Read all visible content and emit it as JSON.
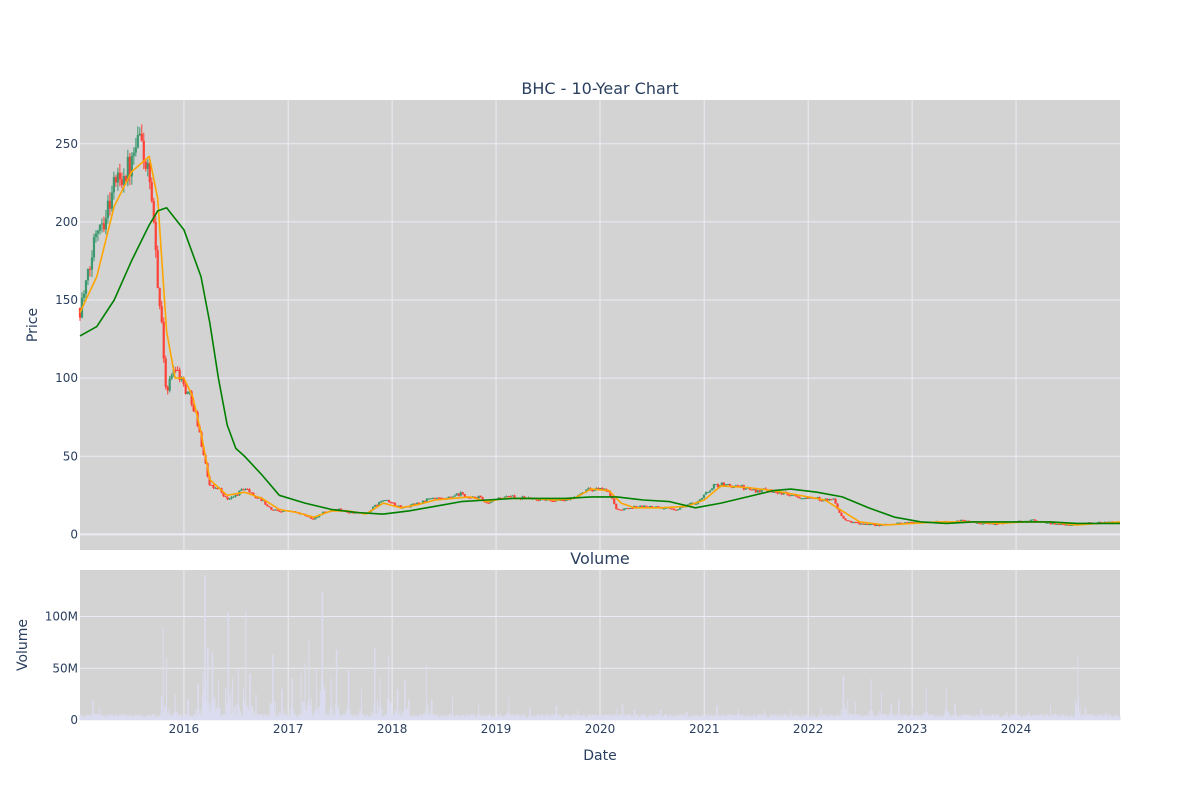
{
  "chart_data": {
    "title": "BHC - 10-Year Chart",
    "subplot_title": "Volume",
    "xlabel": "Date",
    "colors": {
      "plot_bg": "#d3d3d3",
      "grid": "#ebebf5",
      "increasing": "#3d9970",
      "decreasing": "#ff4136",
      "ma_short": "#ffa500",
      "ma_long": "#008000",
      "volume": "#dcdcf0"
    },
    "price_panel": {
      "type": "candlestick",
      "ylabel": "Price",
      "ylim": [
        -10,
        278
      ],
      "yticks": [
        0,
        50,
        100,
        150,
        200,
        250
      ],
      "ytick_labels": [
        "0",
        "50",
        "100",
        "150",
        "200",
        "250"
      ],
      "close_profile": [
        [
          "2015-01-01",
          145
        ],
        [
          "2015-02-01",
          165
        ],
        [
          "2015-03-01",
          200
        ],
        [
          "2015-04-01",
          205
        ],
        [
          "2015-05-01",
          225
        ],
        [
          "2015-06-01",
          232
        ],
        [
          "2015-07-01",
          235
        ],
        [
          "2015-08-01",
          255
        ],
        [
          "2015-09-01",
          225
        ],
        [
          "2015-10-01",
          165
        ],
        [
          "2015-11-01",
          90
        ],
        [
          "2015-12-01",
          110
        ],
        [
          "2016-01-01",
          95
        ],
        [
          "2016-02-01",
          85
        ],
        [
          "2016-03-01",
          60
        ],
        [
          "2016-04-01",
          30
        ],
        [
          "2016-05-01",
          30
        ],
        [
          "2016-06-01",
          22
        ],
        [
          "2016-07-01",
          25
        ],
        [
          "2016-08-01",
          30
        ],
        [
          "2016-09-01",
          25
        ],
        [
          "2016-10-01",
          22
        ],
        [
          "2016-11-01",
          16
        ],
        [
          "2016-12-01",
          15
        ],
        [
          "2017-01-01",
          15
        ],
        [
          "2017-02-01",
          14
        ],
        [
          "2017-03-01",
          12
        ],
        [
          "2017-04-01",
          10
        ],
        [
          "2017-05-01",
          14
        ],
        [
          "2017-06-01",
          15
        ],
        [
          "2017-07-01",
          16
        ],
        [
          "2017-08-01",
          14
        ],
        [
          "2017-09-01",
          14
        ],
        [
          "2017-10-01",
          13
        ],
        [
          "2017-11-01",
          18
        ],
        [
          "2017-12-01",
          22
        ],
        [
          "2018-01-01",
          20
        ],
        [
          "2018-02-01",
          17
        ],
        [
          "2018-03-01",
          18
        ],
        [
          "2018-04-01",
          20
        ],
        [
          "2018-05-01",
          22
        ],
        [
          "2018-06-01",
          23
        ],
        [
          "2018-07-01",
          22
        ],
        [
          "2018-08-01",
          24
        ],
        [
          "2018-09-01",
          26
        ],
        [
          "2018-10-01",
          23
        ],
        [
          "2018-11-01",
          24
        ],
        [
          "2018-12-01",
          19
        ],
        [
          "2019-01-01",
          23
        ],
        [
          "2019-03-01",
          24
        ],
        [
          "2019-05-01",
          23
        ],
        [
          "2019-07-01",
          22
        ],
        [
          "2019-09-01",
          22
        ],
        [
          "2019-10-01",
          23
        ],
        [
          "2019-11-01",
          28
        ],
        [
          "2019-12-01",
          29
        ],
        [
          "2020-01-01",
          29
        ],
        [
          "2020-02-01",
          27
        ],
        [
          "2020-03-01",
          15
        ],
        [
          "2020-04-01",
          17
        ],
        [
          "2020-06-01",
          18
        ],
        [
          "2020-08-01",
          17
        ],
        [
          "2020-10-01",
          16
        ],
        [
          "2020-11-01",
          19
        ],
        [
          "2020-12-01",
          20
        ],
        [
          "2021-01-01",
          25
        ],
        [
          "2021-02-01",
          31
        ],
        [
          "2021-03-01",
          32
        ],
        [
          "2021-04-01",
          31
        ],
        [
          "2021-05-01",
          31
        ],
        [
          "2021-06-01",
          29
        ],
        [
          "2021-07-01",
          28
        ],
        [
          "2021-08-01",
          29
        ],
        [
          "2021-09-01",
          28
        ],
        [
          "2021-10-01",
          26
        ],
        [
          "2021-11-01",
          26
        ],
        [
          "2021-12-01",
          24
        ],
        [
          "2022-01-01",
          24
        ],
        [
          "2022-02-01",
          23
        ],
        [
          "2022-03-01",
          22
        ],
        [
          "2022-04-01",
          22
        ],
        [
          "2022-05-01",
          10
        ],
        [
          "2022-06-01",
          8
        ],
        [
          "2022-07-01",
          7
        ],
        [
          "2022-08-01",
          6
        ],
        [
          "2022-09-01",
          6
        ],
        [
          "2022-10-01",
          6
        ],
        [
          "2022-11-01",
          7
        ],
        [
          "2023-01-01",
          8
        ],
        [
          "2023-03-01",
          8
        ],
        [
          "2023-05-01",
          8
        ],
        [
          "2023-07-01",
          9
        ],
        [
          "2023-09-01",
          7
        ],
        [
          "2023-11-01",
          7
        ],
        [
          "2024-01-01",
          8
        ],
        [
          "2024-03-01",
          9
        ],
        [
          "2024-05-01",
          7
        ],
        [
          "2024-07-01",
          6
        ],
        [
          "2024-09-01",
          7
        ],
        [
          "2024-12-31",
          8
        ]
      ],
      "ma_short": {
        "type": "line",
        "points": [
          [
            "2015-01-01",
            142
          ],
          [
            "2015-03-01",
            165
          ],
          [
            "2015-05-01",
            210
          ],
          [
            "2015-07-01",
            232
          ],
          [
            "2015-09-01",
            242
          ],
          [
            "2015-10-01",
            215
          ],
          [
            "2015-11-01",
            130
          ],
          [
            "2015-12-01",
            100
          ],
          [
            "2016-01-01",
            100
          ],
          [
            "2016-02-01",
            88
          ],
          [
            "2016-03-01",
            65
          ],
          [
            "2016-04-01",
            35
          ],
          [
            "2016-05-01",
            30
          ],
          [
            "2016-06-01",
            25
          ],
          [
            "2016-08-01",
            27
          ],
          [
            "2016-10-01",
            23
          ],
          [
            "2016-12-01",
            16
          ],
          [
            "2017-02-01",
            14
          ],
          [
            "2017-04-01",
            11
          ],
          [
            "2017-06-01",
            15
          ],
          [
            "2017-08-01",
            15
          ],
          [
            "2017-10-01",
            13
          ],
          [
            "2017-12-01",
            20
          ],
          [
            "2018-02-01",
            17
          ],
          [
            "2018-04-01",
            19
          ],
          [
            "2018-06-01",
            22
          ],
          [
            "2018-08-01",
            23
          ],
          [
            "2018-10-01",
            24
          ],
          [
            "2018-12-01",
            21
          ],
          [
            "2019-02-01",
            23
          ],
          [
            "2019-05-01",
            23
          ],
          [
            "2019-08-01",
            22
          ],
          [
            "2019-10-01",
            23
          ],
          [
            "2019-12-01",
            29
          ],
          [
            "2020-02-01",
            28
          ],
          [
            "2020-03-15",
            20
          ],
          [
            "2020-05-01",
            17
          ],
          [
            "2020-08-01",
            17
          ],
          [
            "2020-11-01",
            18
          ],
          [
            "2021-01-01",
            22
          ],
          [
            "2021-03-01",
            31
          ],
          [
            "2021-06-01",
            30
          ],
          [
            "2021-09-01",
            28
          ],
          [
            "2021-12-01",
            25
          ],
          [
            "2022-03-01",
            22
          ],
          [
            "2022-05-01",
            15
          ],
          [
            "2022-07-01",
            8
          ],
          [
            "2022-10-01",
            6
          ],
          [
            "2023-01-01",
            7
          ],
          [
            "2023-04-01",
            8
          ],
          [
            "2023-08-01",
            8
          ],
          [
            "2023-11-01",
            7
          ],
          [
            "2024-02-01",
            8
          ],
          [
            "2024-05-01",
            8
          ],
          [
            "2024-08-01",
            6
          ],
          [
            "2024-12-31",
            8
          ]
        ]
      },
      "ma_long": {
        "type": "line",
        "points": [
          [
            "2015-01-01",
            127
          ],
          [
            "2015-03-01",
            133
          ],
          [
            "2015-05-01",
            150
          ],
          [
            "2015-07-01",
            175
          ],
          [
            "2015-09-01",
            198
          ],
          [
            "2015-10-01",
            207
          ],
          [
            "2015-11-01",
            209
          ],
          [
            "2016-01-01",
            195
          ],
          [
            "2016-03-01",
            165
          ],
          [
            "2016-04-01",
            135
          ],
          [
            "2016-05-01",
            100
          ],
          [
            "2016-06-01",
            70
          ],
          [
            "2016-07-01",
            55
          ],
          [
            "2016-08-01",
            50
          ],
          [
            "2016-10-01",
            38
          ],
          [
            "2016-12-01",
            25
          ],
          [
            "2017-03-01",
            20
          ],
          [
            "2017-06-01",
            16
          ],
          [
            "2017-09-01",
            14
          ],
          [
            "2017-12-01",
            13
          ],
          [
            "2018-03-01",
            15
          ],
          [
            "2018-06-01",
            18
          ],
          [
            "2018-09-01",
            21
          ],
          [
            "2018-12-01",
            22
          ],
          [
            "2019-03-01",
            23
          ],
          [
            "2019-06-01",
            23
          ],
          [
            "2019-09-01",
            23
          ],
          [
            "2019-12-01",
            24
          ],
          [
            "2020-03-01",
            24
          ],
          [
            "2020-06-01",
            22
          ],
          [
            "2020-09-01",
            21
          ],
          [
            "2020-12-01",
            17
          ],
          [
            "2021-03-01",
            20
          ],
          [
            "2021-06-01",
            24
          ],
          [
            "2021-09-01",
            28
          ],
          [
            "2021-11-01",
            29
          ],
          [
            "2022-02-01",
            27
          ],
          [
            "2022-05-01",
            24
          ],
          [
            "2022-08-01",
            17
          ],
          [
            "2022-11-01",
            11
          ],
          [
            "2023-02-01",
            8
          ],
          [
            "2023-05-01",
            7
          ],
          [
            "2023-08-01",
            8
          ],
          [
            "2023-11-01",
            8
          ],
          [
            "2024-02-01",
            8
          ],
          [
            "2024-05-01",
            8
          ],
          [
            "2024-08-01",
            7
          ],
          [
            "2024-12-31",
            7
          ]
        ]
      }
    },
    "volume_panel": {
      "type": "bar",
      "ylabel": "Volume",
      "ylim": [
        0,
        145000000
      ],
      "yticks": [
        0,
        50000000,
        100000000
      ],
      "ytick_labels": [
        "0",
        "50M",
        "100M"
      ],
      "base_level": 4000000,
      "spikes": [
        [
          "2015-02-15",
          19000000
        ],
        [
          "2015-03-10",
          12000000
        ],
        [
          "2015-06-01",
          6000000
        ],
        [
          "2015-10-20",
          89000000
        ],
        [
          "2015-11-01",
          60000000
        ],
        [
          "2015-12-01",
          25000000
        ],
        [
          "2016-01-15",
          20000000
        ],
        [
          "2016-02-20",
          35000000
        ],
        [
          "2016-03-15",
          140000000
        ],
        [
          "2016-03-25",
          70000000
        ],
        [
          "2016-04-10",
          65000000
        ],
        [
          "2016-05-01",
          38000000
        ],
        [
          "2016-06-05",
          104000000
        ],
        [
          "2016-06-20",
          40000000
        ],
        [
          "2016-07-10",
          50000000
        ],
        [
          "2016-08-05",
          105000000
        ],
        [
          "2016-08-20",
          45000000
        ],
        [
          "2016-09-10",
          25000000
        ],
        [
          "2016-11-08",
          63000000
        ],
        [
          "2016-12-10",
          30000000
        ],
        [
          "2017-01-15",
          40000000
        ],
        [
          "2017-02-15",
          45000000
        ],
        [
          "2017-03-01",
          55000000
        ],
        [
          "2017-03-15",
          77000000
        ],
        [
          "2017-04-10",
          50000000
        ],
        [
          "2017-05-01",
          124000000
        ],
        [
          "2017-06-01",
          40000000
        ],
        [
          "2017-06-20",
          68000000
        ],
        [
          "2017-08-01",
          48000000
        ],
        [
          "2017-09-15",
          30000000
        ],
        [
          "2017-11-01",
          70000000
        ],
        [
          "2017-11-20",
          40000000
        ],
        [
          "2017-12-20",
          62000000
        ],
        [
          "2018-01-20",
          30000000
        ],
        [
          "2018-02-15",
          38000000
        ],
        [
          "2018-03-01",
          20000000
        ],
        [
          "2018-05-01",
          53000000
        ],
        [
          "2018-05-20",
          20000000
        ],
        [
          "2018-08-01",
          22000000
        ],
        [
          "2018-11-01",
          15000000
        ],
        [
          "2019-02-15",
          22000000
        ],
        [
          "2019-05-01",
          12000000
        ],
        [
          "2019-08-01",
          14000000
        ],
        [
          "2019-10-15",
          10000000
        ],
        [
          "2020-03-01",
          12000000
        ],
        [
          "2020-03-20",
          15000000
        ],
        [
          "2020-05-01",
          10000000
        ],
        [
          "2020-08-01",
          10000000
        ],
        [
          "2020-11-01",
          8000000
        ],
        [
          "2021-02-15",
          14000000
        ],
        [
          "2021-05-01",
          10000000
        ],
        [
          "2021-08-01",
          10000000
        ],
        [
          "2021-11-01",
          9000000
        ],
        [
          "2022-02-15",
          12000000
        ],
        [
          "2022-05-05",
          43000000
        ],
        [
          "2022-05-20",
          20000000
        ],
        [
          "2022-06-15",
          18000000
        ],
        [
          "2022-08-10",
          40000000
        ],
        [
          "2022-09-15",
          27000000
        ],
        [
          "2022-10-20",
          15000000
        ],
        [
          "2022-11-15",
          20000000
        ],
        [
          "2023-01-01",
          12000000
        ],
        [
          "2023-02-20",
          32000000
        ],
        [
          "2023-05-01",
          31000000
        ],
        [
          "2023-06-01",
          16000000
        ],
        [
          "2023-09-01",
          10000000
        ],
        [
          "2023-12-01",
          8000000
        ],
        [
          "2024-02-15",
          8000000
        ],
        [
          "2024-05-01",
          14000000
        ],
        [
          "2024-08-05",
          63000000
        ],
        [
          "2024-09-01",
          12000000
        ],
        [
          "2024-11-15",
          8000000
        ]
      ]
    },
    "x_axis": {
      "start": "2015-01-01",
      "end": "2024-12-31",
      "ticks": [
        "2016-01-01",
        "2017-01-01",
        "2018-01-01",
        "2019-01-01",
        "2020-01-01",
        "2021-01-01",
        "2022-01-01",
        "2023-01-01",
        "2024-01-01"
      ],
      "tick_labels": [
        "2016",
        "2017",
        "2018",
        "2019",
        "2020",
        "2021",
        "2022",
        "2023",
        "2024"
      ]
    },
    "grid": true,
    "legend": "none"
  }
}
